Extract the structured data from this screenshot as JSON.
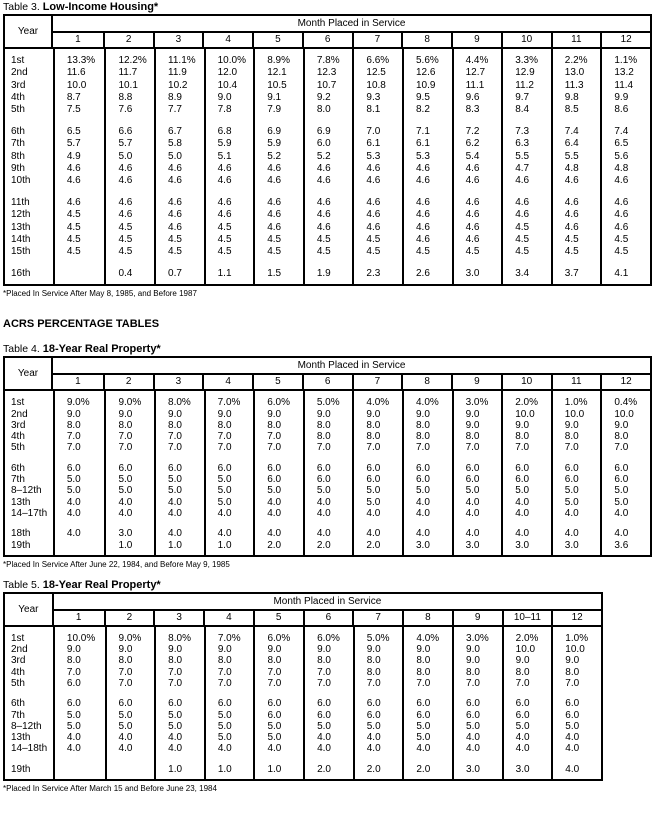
{
  "tables": [
    {
      "label": "Table 3.",
      "name": "Low-Income Housing*",
      "year_header": "Year",
      "month_header": "Month Placed in Service",
      "columns": [
        "1",
        "2",
        "3",
        "4",
        "5",
        "6",
        "7",
        "8",
        "9",
        "10",
        "11",
        "12"
      ],
      "groups": [
        [
          {
            "year": "1st",
            "values": [
              "13.3%",
              "12.2%",
              "11.1%",
              "10.0%",
              "8.9%",
              "7.8%",
              "6.6%",
              "5.6%",
              "4.4%",
              "3.3%",
              "2.2%",
              "1.1%"
            ]
          },
          {
            "year": "2nd",
            "values": [
              "11.6",
              "11.7",
              "11.9",
              "12.0",
              "12.1",
              "12.3",
              "12.5",
              "12.6",
              "12.7",
              "12.9",
              "13.0",
              "13.2"
            ]
          },
          {
            "year": "3rd",
            "values": [
              "10.0",
              "10.1",
              "10.2",
              "10.4",
              "10.5",
              "10.7",
              "10.8",
              "10.9",
              "11.1",
              "11.2",
              "11.3",
              "11.4"
            ]
          },
          {
            "year": "4th",
            "values": [
              "8.7",
              "8.8",
              "8.9",
              "9.0",
              "9.1",
              "9.2",
              "9.3",
              "9.5",
              "9.6",
              "9.7",
              "9.8",
              "9.9"
            ]
          },
          {
            "year": "5th",
            "values": [
              "7.5",
              "7.6",
              "7.7",
              "7.8",
              "7.9",
              "8.0",
              "8.1",
              "8.2",
              "8.3",
              "8.4",
              "8.5",
              "8.6"
            ]
          }
        ],
        [
          {
            "year": "6th",
            "values": [
              "6.5",
              "6.6",
              "6.7",
              "6.8",
              "6.9",
              "6.9",
              "7.0",
              "7.1",
              "7.2",
              "7.3",
              "7.4",
              "7.4"
            ]
          },
          {
            "year": "7th",
            "values": [
              "5.7",
              "5.7",
              "5.8",
              "5.9",
              "5.9",
              "6.0",
              "6.1",
              "6.1",
              "6.2",
              "6.3",
              "6.4",
              "6.5"
            ]
          },
          {
            "year": "8th",
            "values": [
              "4.9",
              "5.0",
              "5.0",
              "5.1",
              "5.2",
              "5.2",
              "5.3",
              "5.3",
              "5.4",
              "5.5",
              "5.5",
              "5.6"
            ]
          },
          {
            "year": "9th",
            "values": [
              "4.6",
              "4.6",
              "4.6",
              "4.6",
              "4.6",
              "4.6",
              "4.6",
              "4.6",
              "4.6",
              "4.7",
              "4.8",
              "4.8"
            ]
          },
          {
            "year": "10th",
            "values": [
              "4.6",
              "4.6",
              "4.6",
              "4.6",
              "4.6",
              "4.6",
              "4.6",
              "4.6",
              "4.6",
              "4.6",
              "4.6",
              "4.6"
            ]
          }
        ],
        [
          {
            "year": "11th",
            "values": [
              "4.6",
              "4.6",
              "4.6",
              "4.6",
              "4.6",
              "4.6",
              "4.6",
              "4.6",
              "4.6",
              "4.6",
              "4.6",
              "4.6"
            ]
          },
          {
            "year": "12th",
            "values": [
              "4.5",
              "4.6",
              "4.6",
              "4.6",
              "4.6",
              "4.6",
              "4.6",
              "4.6",
              "4.6",
              "4.6",
              "4.6",
              "4.6"
            ]
          },
          {
            "year": "13th",
            "values": [
              "4.5",
              "4.5",
              "4.6",
              "4.5",
              "4.6",
              "4.6",
              "4.6",
              "4.6",
              "4.6",
              "4.5",
              "4.6",
              "4.6"
            ]
          },
          {
            "year": "14th",
            "values": [
              "4.5",
              "4.5",
              "4.5",
              "4.5",
              "4.5",
              "4.5",
              "4.5",
              "4.6",
              "4.6",
              "4.5",
              "4.5",
              "4.5"
            ]
          },
          {
            "year": "15th",
            "values": [
              "4.5",
              "4.5",
              "4.5",
              "4.5",
              "4.5",
              "4.5",
              "4.5",
              "4.5",
              "4.5",
              "4.5",
              "4.5",
              "4.5"
            ]
          }
        ],
        [
          {
            "year": "16th",
            "values": [
              "",
              "0.4",
              "0.7",
              "1.1",
              "1.5",
              "1.9",
              "2.3",
              "2.6",
              "3.0",
              "3.4",
              "3.7",
              "4.1"
            ]
          }
        ]
      ],
      "footnote": "*Placed In Service After May 8, 1985, and Before 1987"
    },
    {
      "label": "Table 4.",
      "name": "18-Year Real Property*",
      "year_header": "Year",
      "month_header": "Month Placed in Service",
      "columns": [
        "1",
        "2",
        "3",
        "4",
        "5",
        "6",
        "7",
        "8",
        "9",
        "10",
        "11",
        "12"
      ],
      "groups": [
        [
          {
            "year": "1st",
            "values": [
              "9.0%",
              "9.0%",
              "8.0%",
              "7.0%",
              "6.0%",
              "5.0%",
              "4.0%",
              "4.0%",
              "3.0%",
              "2.0%",
              "1.0%",
              "0.4%"
            ]
          },
          {
            "year": "2nd",
            "values": [
              "9.0",
              "9.0",
              "9.0",
              "9.0",
              "9.0",
              "9.0",
              "9.0",
              "9.0",
              "9.0",
              "10.0",
              "10.0",
              "10.0"
            ]
          },
          {
            "year": "3rd",
            "values": [
              "8.0",
              "8.0",
              "8.0",
              "8.0",
              "8.0",
              "8.0",
              "8.0",
              "8.0",
              "9.0",
              "9.0",
              "9.0",
              "9.0"
            ]
          },
          {
            "year": "4th",
            "values": [
              "7.0",
              "7.0",
              "7.0",
              "7.0",
              "7.0",
              "8.0",
              "8.0",
              "8.0",
              "8.0",
              "8.0",
              "8.0",
              "8.0"
            ]
          },
          {
            "year": "5th",
            "values": [
              "7.0",
              "7.0",
              "7.0",
              "7.0",
              "7.0",
              "7.0",
              "7.0",
              "7.0",
              "7.0",
              "7.0",
              "7.0",
              "7.0"
            ]
          }
        ],
        [
          {
            "year": "6th",
            "values": [
              "6.0",
              "6.0",
              "6.0",
              "6.0",
              "6.0",
              "6.0",
              "6.0",
              "6.0",
              "6.0",
              "6.0",
              "6.0",
              "6.0"
            ]
          },
          {
            "year": "7th",
            "values": [
              "5.0",
              "5.0",
              "5.0",
              "5.0",
              "6.0",
              "6.0",
              "6.0",
              "6.0",
              "6.0",
              "6.0",
              "6.0",
              "6.0"
            ]
          },
          {
            "year": "8–12th",
            "values": [
              "5.0",
              "5.0",
              "5.0",
              "5.0",
              "5.0",
              "5.0",
              "5.0",
              "5.0",
              "5.0",
              "5.0",
              "5.0",
              "5.0"
            ]
          },
          {
            "year": "13th",
            "values": [
              "4.0",
              "4.0",
              "4.0",
              "5.0",
              "4.0",
              "4.0",
              "5.0",
              "4.0",
              "4.0",
              "4.0",
              "5.0",
              "5.0"
            ]
          },
          {
            "year": "14–17th",
            "values": [
              "4.0",
              "4.0",
              "4.0",
              "4.0",
              "4.0",
              "4.0",
              "4.0",
              "4.0",
              "4.0",
              "4.0",
              "4.0",
              "4.0"
            ]
          }
        ],
        [
          {
            "year": "18th",
            "values": [
              "4.0",
              "3.0",
              "4.0",
              "4.0",
              "4.0",
              "4.0",
              "4.0",
              "4.0",
              "4.0",
              "4.0",
              "4.0",
              "4.0"
            ]
          },
          {
            "year": "19th",
            "values": [
              "",
              "1.0",
              "1.0",
              "1.0",
              "2.0",
              "2.0",
              "2.0",
              "3.0",
              "3.0",
              "3.0",
              "3.0",
              "3.6"
            ]
          }
        ]
      ],
      "footnote": "*Placed In Service After June 22, 1984, and Before May 9, 1985"
    },
    {
      "label": "Table 5.",
      "name": "18-Year Real Property*",
      "year_header": "Year",
      "month_header": "Month Placed in Service",
      "columns": [
        "1",
        "2",
        "3",
        "4",
        "5",
        "6",
        "7",
        "8",
        "9",
        "10–11",
        "12"
      ],
      "groups": [
        [
          {
            "year": "1st",
            "values": [
              "10.0%",
              "9.0%",
              "8.0%",
              "7.0%",
              "6.0%",
              "6.0%",
              "5.0%",
              "4.0%",
              "3.0%",
              "2.0%",
              "1.0%"
            ]
          },
          {
            "year": "2nd",
            "values": [
              "9.0",
              "9.0",
              "9.0",
              "9.0",
              "9.0",
              "9.0",
              "9.0",
              "9.0",
              "9.0",
              "10.0",
              "10.0"
            ]
          },
          {
            "year": "3rd",
            "values": [
              "8.0",
              "8.0",
              "8.0",
              "8.0",
              "8.0",
              "8.0",
              "8.0",
              "8.0",
              "9.0",
              "9.0",
              "9.0"
            ]
          },
          {
            "year": "4th",
            "values": [
              "7.0",
              "7.0",
              "7.0",
              "7.0",
              "7.0",
              "7.0",
              "8.0",
              "8.0",
              "8.0",
              "8.0",
              "8.0"
            ]
          },
          {
            "year": "5th",
            "values": [
              "6.0",
              "7.0",
              "7.0",
              "7.0",
              "7.0",
              "7.0",
              "7.0",
              "7.0",
              "7.0",
              "7.0",
              "7.0"
            ]
          }
        ],
        [
          {
            "year": "6th",
            "values": [
              "6.0",
              "6.0",
              "6.0",
              "6.0",
              "6.0",
              "6.0",
              "6.0",
              "6.0",
              "6.0",
              "6.0",
              "6.0"
            ]
          },
          {
            "year": "7th",
            "values": [
              "5.0",
              "5.0",
              "5.0",
              "5.0",
              "6.0",
              "6.0",
              "6.0",
              "6.0",
              "6.0",
              "6.0",
              "6.0"
            ]
          },
          {
            "year": "8–12th",
            "values": [
              "5.0",
              "5.0",
              "5.0",
              "5.0",
              "5.0",
              "5.0",
              "5.0",
              "5.0",
              "5.0",
              "5.0",
              "5.0"
            ]
          },
          {
            "year": "13th",
            "values": [
              "4.0",
              "4.0",
              "4.0",
              "5.0",
              "5.0",
              "4.0",
              "4.0",
              "5.0",
              "4.0",
              "4.0",
              "4.0"
            ]
          },
          {
            "year": "14–18th",
            "values": [
              "4.0",
              "4.0",
              "4.0",
              "4.0",
              "4.0",
              "4.0",
              "4.0",
              "4.0",
              "4.0",
              "4.0",
              "4.0"
            ]
          }
        ],
        [
          {
            "year": "19th",
            "values": [
              "",
              "",
              "1.0",
              "1.0",
              "1.0",
              "2.0",
              "2.0",
              "2.0",
              "3.0",
              "3.0",
              "4.0"
            ]
          }
        ]
      ],
      "footnote": "*Placed In Service After March 15 and Before June 23, 1984"
    }
  ],
  "section_heading": "ACRS PERCENTAGE TABLES"
}
